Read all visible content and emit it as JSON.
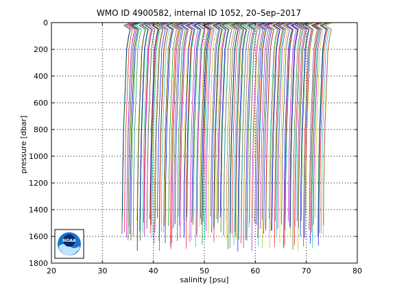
{
  "chart_data": {
    "type": "line",
    "title": "WMO ID 4900582, internal ID 1052, 20–Sep–2017",
    "xlabel": "salinity [psu]",
    "ylabel": "pressure [dbar]",
    "xlim": [
      20,
      80
    ],
    "ylim": [
      0,
      1800
    ],
    "y_reversed": true,
    "grid": "dotted",
    "x_ticks": [
      "20",
      "30",
      "40",
      "50",
      "60",
      "70",
      "80"
    ],
    "y_ticks": [
      "0",
      "200",
      "400",
      "600",
      "800",
      "1000",
      "1200",
      "1400",
      "1600",
      "1800"
    ],
    "profile_family": {
      "profile_count": 160,
      "start_salinity_range": [
        35.0,
        75.5
      ],
      "offset_step_per_profile": 0.25,
      "shape_salinity_vs_pressure": [
        {
          "pressure": 0,
          "salinity_offset": 0.6
        },
        {
          "pressure": 20,
          "salinity_offset": -0.8
        },
        {
          "pressure": 50,
          "salinity_offset": 0.4
        },
        {
          "pressure": 100,
          "salinity_offset": 0.1
        },
        {
          "pressure": 200,
          "salinity_offset": -0.3
        },
        {
          "pressure": 400,
          "salinity_offset": -0.5
        },
        {
          "pressure": 600,
          "salinity_offset": -0.7
        },
        {
          "pressure": 800,
          "salinity_offset": -0.9
        },
        {
          "pressure": 1000,
          "salinity_offset": -1.0
        },
        {
          "pressure": 1200,
          "salinity_offset": -1.1
        },
        {
          "pressure": 1400,
          "salinity_offset": -1.15
        },
        {
          "pressure": 1600,
          "salinity_offset": -1.2
        }
      ],
      "max_pressure_range": [
        1450,
        1720
      ],
      "colors": [
        "#0000ff",
        "#008000",
        "#ff0000",
        "#00bfbf",
        "#bf00bf",
        "#bfbf00",
        "#404040"
      ]
    }
  },
  "logo": {
    "label": "NOAA",
    "colors": {
      "blue": "#1a75d1",
      "dark": "#0a2a6b",
      "light": "#bfe3ff"
    }
  }
}
